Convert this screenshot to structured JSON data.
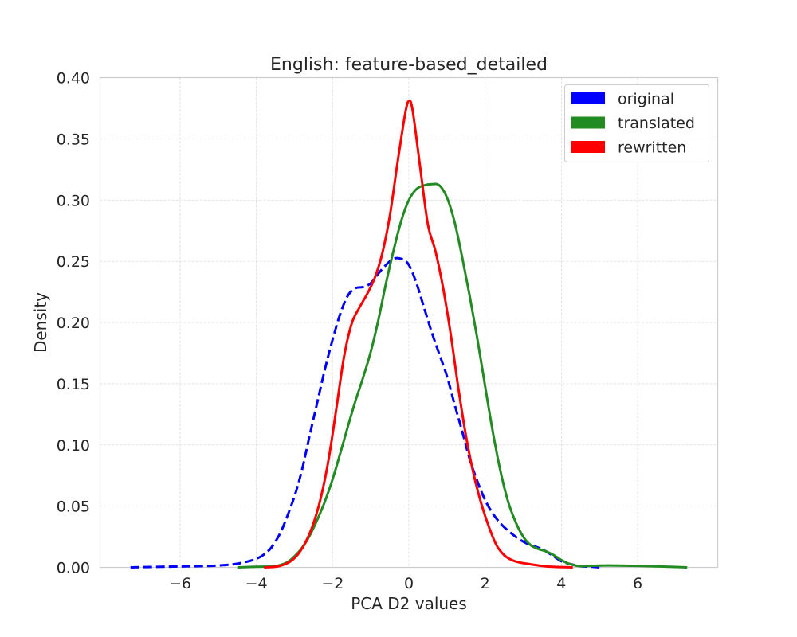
{
  "chart_data": {
    "type": "line",
    "title": "English: feature-based_detailed",
    "xlabel": "PCA D2 values",
    "ylabel": "Density",
    "xlim": [
      -8.1,
      8.1
    ],
    "ylim": [
      0,
      0.4
    ],
    "xticks": [
      -6,
      -4,
      -2,
      0,
      2,
      4,
      6
    ],
    "xtick_labels": [
      "−6",
      "−4",
      "−2",
      "0",
      "2",
      "4",
      "6"
    ],
    "yticks": [
      0.0,
      0.05,
      0.1,
      0.15,
      0.2,
      0.25,
      0.3,
      0.35,
      0.4
    ],
    "ytick_labels": [
      "0.00",
      "0.05",
      "0.10",
      "0.15",
      "0.20",
      "0.25",
      "0.30",
      "0.35",
      "0.40"
    ],
    "grid": true,
    "legend_position": "top-right",
    "series": [
      {
        "name": "original",
        "color": "#0000ff",
        "dash": true,
        "x": [
          -7.3,
          -6.5,
          -5.5,
          -5.0,
          -4.5,
          -4.0,
          -3.7,
          -3.5,
          -3.3,
          -3.0,
          -2.8,
          -2.6,
          -2.4,
          -2.2,
          -2.0,
          -1.8,
          -1.6,
          -1.4,
          -1.2,
          -1.0,
          -0.8,
          -0.6,
          -0.4,
          -0.2,
          0.0,
          0.2,
          0.4,
          0.6,
          0.8,
          1.0,
          1.2,
          1.4,
          1.6,
          1.8,
          2.0,
          2.2,
          2.4,
          2.6,
          2.8,
          3.0,
          3.2,
          3.4,
          3.6,
          3.8,
          4.0,
          4.2,
          4.5,
          4.8,
          5.0
        ],
        "y": [
          0.0,
          0.0005,
          0.001,
          0.0015,
          0.003,
          0.007,
          0.013,
          0.021,
          0.033,
          0.058,
          0.08,
          0.108,
          0.135,
          0.162,
          0.186,
          0.207,
          0.222,
          0.228,
          0.229,
          0.232,
          0.24,
          0.247,
          0.252,
          0.252,
          0.247,
          0.232,
          0.212,
          0.192,
          0.174,
          0.156,
          0.133,
          0.111,
          0.088,
          0.07,
          0.055,
          0.044,
          0.036,
          0.03,
          0.025,
          0.021,
          0.018,
          0.016,
          0.013,
          0.009,
          0.005,
          0.003,
          0.001,
          0.0005,
          0.0
        ]
      },
      {
        "name": "translated",
        "color": "#228b22",
        "dash": false,
        "x": [
          -4.5,
          -4.0,
          -3.5,
          -3.2,
          -3.0,
          -2.8,
          -2.6,
          -2.4,
          -2.2,
          -2.0,
          -1.8,
          -1.6,
          -1.4,
          -1.2,
          -1.0,
          -0.8,
          -0.6,
          -0.4,
          -0.2,
          0.0,
          0.2,
          0.4,
          0.6,
          0.8,
          1.0,
          1.2,
          1.4,
          1.6,
          1.8,
          2.0,
          2.2,
          2.4,
          2.6,
          2.8,
          3.0,
          3.2,
          3.4,
          3.6,
          3.8,
          4.0,
          4.2,
          4.5,
          5.0,
          5.5,
          6.0,
          6.5,
          7.0,
          7.3
        ],
        "y": [
          0.0,
          0.0005,
          0.001,
          0.004,
          0.009,
          0.016,
          0.026,
          0.039,
          0.054,
          0.072,
          0.093,
          0.115,
          0.136,
          0.155,
          0.176,
          0.202,
          0.232,
          0.259,
          0.283,
          0.3,
          0.309,
          0.312,
          0.313,
          0.312,
          0.302,
          0.282,
          0.253,
          0.221,
          0.186,
          0.148,
          0.111,
          0.079,
          0.054,
          0.037,
          0.025,
          0.018,
          0.015,
          0.013,
          0.01,
          0.006,
          0.003,
          0.001,
          0.0015,
          0.0015,
          0.0012,
          0.0008,
          0.0003,
          0.0
        ]
      },
      {
        "name": "rewritten",
        "color": "#ff0000",
        "dash": false,
        "x": [
          -3.8,
          -3.5,
          -3.3,
          -3.1,
          -2.9,
          -2.7,
          -2.5,
          -2.3,
          -2.1,
          -1.9,
          -1.7,
          -1.5,
          -1.3,
          -1.1,
          -0.9,
          -0.7,
          -0.5,
          -0.3,
          -0.1,
          0.0,
          0.1,
          0.3,
          0.5,
          0.7,
          0.9,
          1.1,
          1.3,
          1.5,
          1.7,
          1.9,
          2.1,
          2.3,
          2.5,
          2.7,
          2.9,
          3.1,
          3.3,
          3.6,
          3.9,
          4.3
        ],
        "y": [
          0.0,
          0.0005,
          0.002,
          0.005,
          0.011,
          0.021,
          0.036,
          0.058,
          0.089,
          0.13,
          0.172,
          0.199,
          0.212,
          0.223,
          0.236,
          0.256,
          0.287,
          0.33,
          0.37,
          0.381,
          0.373,
          0.326,
          0.28,
          0.258,
          0.228,
          0.19,
          0.146,
          0.107,
          0.076,
          0.052,
          0.033,
          0.018,
          0.01,
          0.006,
          0.004,
          0.003,
          0.002,
          0.0008,
          0.0003,
          0.0
        ]
      }
    ]
  }
}
